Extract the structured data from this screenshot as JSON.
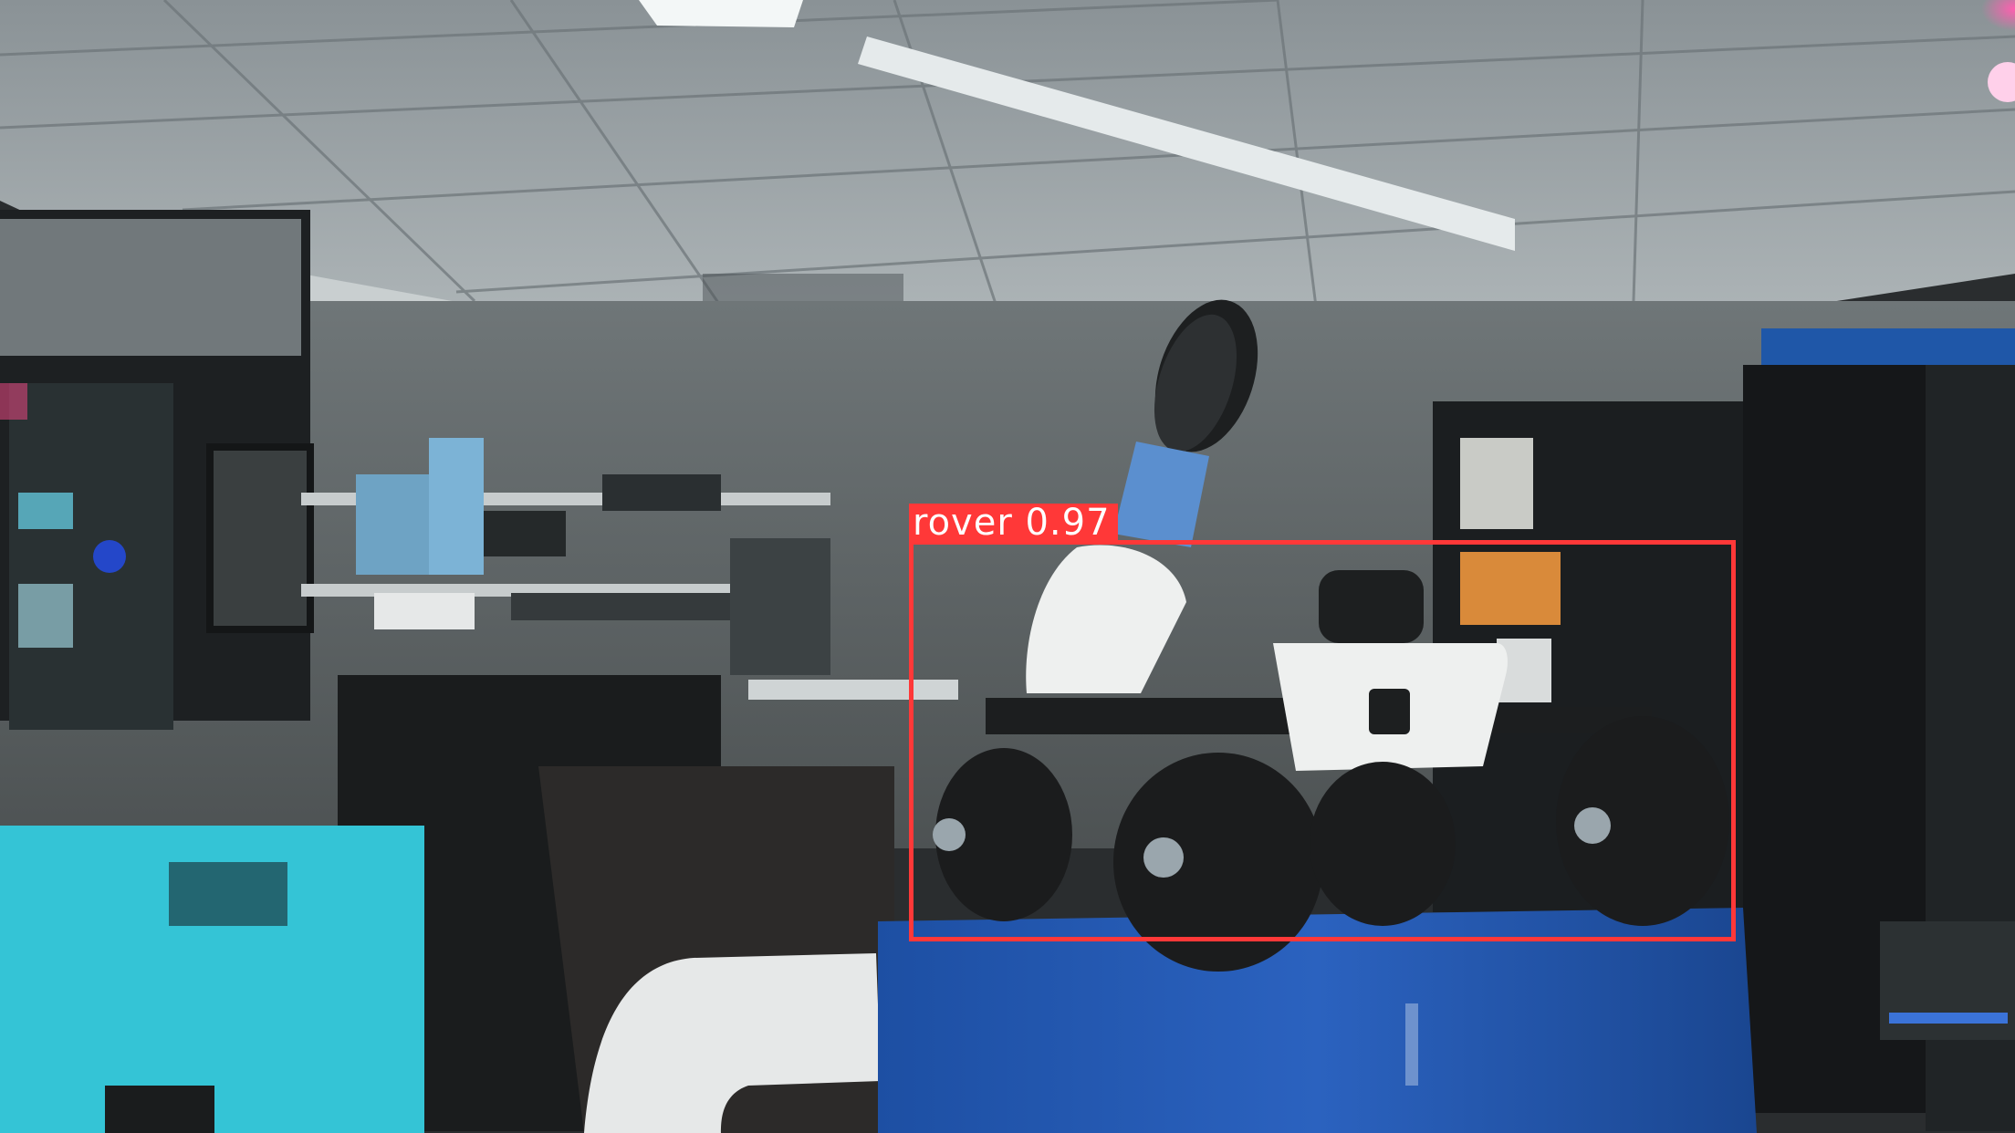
{
  "detections": [
    {
      "label": "rover",
      "score": "0.97",
      "color": "#ff3838"
    }
  ]
}
